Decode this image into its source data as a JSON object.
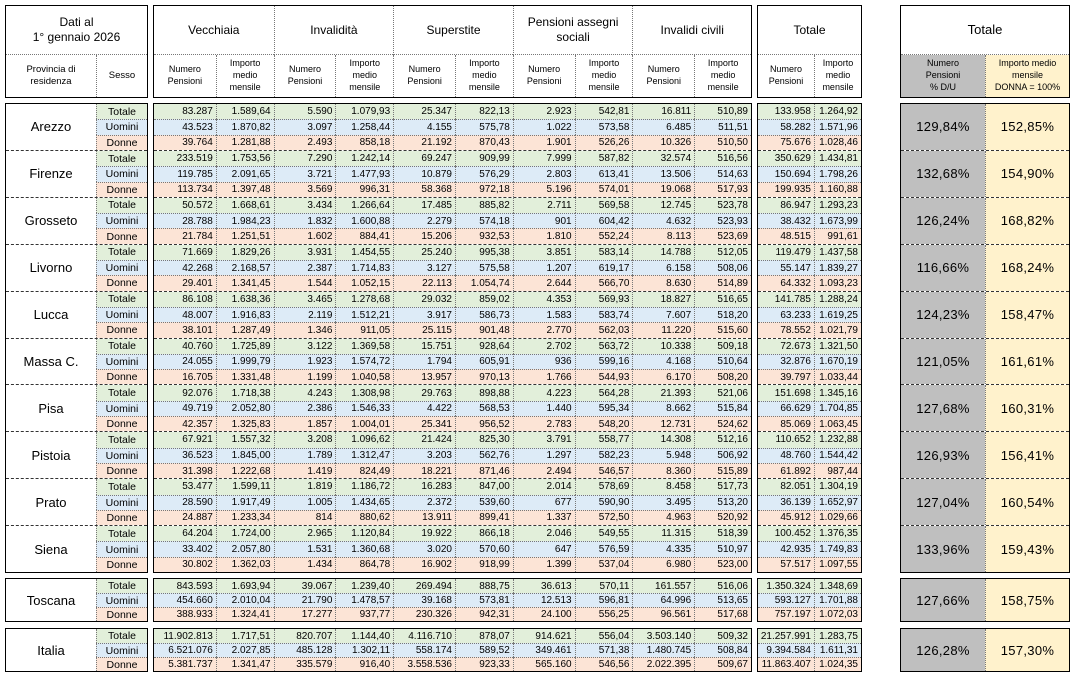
{
  "header": {
    "date_line1": "Dati al",
    "date_line2": "1° gennaio 2026",
    "provincia": "Provincia di residenza",
    "sesso": "Sesso",
    "groups": [
      "Vecchiaia",
      "Invalidità",
      "Superstite",
      "Pensioni assegni sociali",
      "Invalidi civili"
    ],
    "numero": "Numero Pensioni",
    "importo": "Importo medio mensile",
    "totale": "Totale"
  },
  "right_table": {
    "title": "Totale",
    "col_du": [
      "Numero",
      "Pensioni",
      "% D/U"
    ],
    "col_donna": [
      "Importo medio",
      "mensile",
      "DONNA = 100%"
    ]
  },
  "sesso_labels": [
    "Totale",
    "Uomini",
    "Donne"
  ],
  "colors": {
    "row_totale": "#E2EFDA",
    "row_uomini": "#DDEBF7",
    "row_donne": "#FCE4D6",
    "du_gray": "#BFBFBF",
    "donna_yellow": "#FFF2CC",
    "border": "#000000"
  },
  "provinces": [
    {
      "name": "Arezzo",
      "pct_du": "129,84%",
      "pct_donna": "152,85%",
      "rows": [
        {
          "sesso": "Totale",
          "cells": [
            "83.287",
            "1.589,64",
            "5.590",
            "1.079,93",
            "25.347",
            "822,13",
            "2.923",
            "542,81",
            "16.811",
            "510,89",
            "133.958",
            "1.264,92"
          ]
        },
        {
          "sesso": "Uomini",
          "cells": [
            "43.523",
            "1.870,82",
            "3.097",
            "1.258,44",
            "4.155",
            "575,78",
            "1.022",
            "573,58",
            "6.485",
            "511,51",
            "58.282",
            "1.571,96"
          ]
        },
        {
          "sesso": "Donne",
          "cells": [
            "39.764",
            "1.281,88",
            "2.493",
            "858,18",
            "21.192",
            "870,43",
            "1.901",
            "526,26",
            "10.326",
            "510,50",
            "75.676",
            "1.028,46"
          ]
        }
      ]
    },
    {
      "name": "Firenze",
      "pct_du": "132,68%",
      "pct_donna": "154,90%",
      "rows": [
        {
          "sesso": "Totale",
          "cells": [
            "233.519",
            "1.753,56",
            "7.290",
            "1.242,14",
            "69.247",
            "909,99",
            "7.999",
            "587,82",
            "32.574",
            "516,56",
            "350.629",
            "1.434,81"
          ]
        },
        {
          "sesso": "Uomini",
          "cells": [
            "119.785",
            "2.091,65",
            "3.721",
            "1.477,93",
            "10.879",
            "576,29",
            "2.803",
            "613,41",
            "13.506",
            "514,63",
            "150.694",
            "1.798,26"
          ]
        },
        {
          "sesso": "Donne",
          "cells": [
            "113.734",
            "1.397,48",
            "3.569",
            "996,31",
            "58.368",
            "972,18",
            "5.196",
            "574,01",
            "19.068",
            "517,93",
            "199.935",
            "1.160,88"
          ]
        }
      ]
    },
    {
      "name": "Grosseto",
      "pct_du": "126,24%",
      "pct_donna": "168,82%",
      "rows": [
        {
          "sesso": "Totale",
          "cells": [
            "50.572",
            "1.668,61",
            "3.434",
            "1.266,64",
            "17.485",
            "885,82",
            "2.711",
            "569,58",
            "12.745",
            "523,78",
            "86.947",
            "1.293,23"
          ]
        },
        {
          "sesso": "Uomini",
          "cells": [
            "28.788",
            "1.984,23",
            "1.832",
            "1.600,88",
            "2.279",
            "574,18",
            "901",
            "604,42",
            "4.632",
            "523,93",
            "38.432",
            "1.673,99"
          ]
        },
        {
          "sesso": "Donne",
          "cells": [
            "21.784",
            "1.251,51",
            "1.602",
            "884,41",
            "15.206",
            "932,53",
            "1.810",
            "552,24",
            "8.113",
            "523,69",
            "48.515",
            "991,61"
          ]
        }
      ]
    },
    {
      "name": "Livorno",
      "pct_du": "116,66%",
      "pct_donna": "168,24%",
      "rows": [
        {
          "sesso": "Totale",
          "cells": [
            "71.669",
            "1.829,26",
            "3.931",
            "1.454,55",
            "25.240",
            "995,38",
            "3.851",
            "583,14",
            "14.788",
            "512,05",
            "119.479",
            "1.437,58"
          ]
        },
        {
          "sesso": "Uomini",
          "cells": [
            "42.268",
            "2.168,57",
            "2.387",
            "1.714,83",
            "3.127",
            "575,58",
            "1.207",
            "619,17",
            "6.158",
            "508,06",
            "55.147",
            "1.839,27"
          ]
        },
        {
          "sesso": "Donne",
          "cells": [
            "29.401",
            "1.341,45",
            "1.544",
            "1.052,15",
            "22.113",
            "1.054,74",
            "2.644",
            "566,70",
            "8.630",
            "514,89",
            "64.332",
            "1.093,23"
          ]
        }
      ]
    },
    {
      "name": "Lucca",
      "pct_du": "124,23%",
      "pct_donna": "158,47%",
      "rows": [
        {
          "sesso": "Totale",
          "cells": [
            "86.108",
            "1.638,36",
            "3.465",
            "1.278,68",
            "29.032",
            "859,02",
            "4.353",
            "569,93",
            "18.827",
            "516,65",
            "141.785",
            "1.288,24"
          ]
        },
        {
          "sesso": "Uomini",
          "cells": [
            "48.007",
            "1.916,83",
            "2.119",
            "1.512,21",
            "3.917",
            "586,73",
            "1.583",
            "583,74",
            "7.607",
            "518,20",
            "63.233",
            "1.619,25"
          ]
        },
        {
          "sesso": "Donne",
          "cells": [
            "38.101",
            "1.287,49",
            "1.346",
            "911,05",
            "25.115",
            "901,48",
            "2.770",
            "562,03",
            "11.220",
            "515,60",
            "78.552",
            "1.021,79"
          ]
        }
      ]
    },
    {
      "name": "Massa C.",
      "pct_du": "121,05%",
      "pct_donna": "161,61%",
      "rows": [
        {
          "sesso": "Totale",
          "cells": [
            "40.760",
            "1.725,89",
            "3.122",
            "1.369,58",
            "15.751",
            "928,64",
            "2.702",
            "563,72",
            "10.338",
            "509,18",
            "72.673",
            "1.321,50"
          ]
        },
        {
          "sesso": "Uomini",
          "cells": [
            "24.055",
            "1.999,79",
            "1.923",
            "1.574,72",
            "1.794",
            "605,91",
            "936",
            "599,16",
            "4.168",
            "510,64",
            "32.876",
            "1.670,19"
          ]
        },
        {
          "sesso": "Donne",
          "cells": [
            "16.705",
            "1.331,48",
            "1.199",
            "1.040,58",
            "13.957",
            "970,13",
            "1.766",
            "544,93",
            "6.170",
            "508,20",
            "39.797",
            "1.033,44"
          ]
        }
      ]
    },
    {
      "name": "Pisa",
      "pct_du": "127,68%",
      "pct_donna": "160,31%",
      "rows": [
        {
          "sesso": "Totale",
          "cells": [
            "92.076",
            "1.718,38",
            "4.243",
            "1.308,98",
            "29.763",
            "898,88",
            "4.223",
            "564,28",
            "21.393",
            "521,06",
            "151.698",
            "1.345,16"
          ]
        },
        {
          "sesso": "Uomini",
          "cells": [
            "49.719",
            "2.052,80",
            "2.386",
            "1.546,33",
            "4.422",
            "568,53",
            "1.440",
            "595,34",
            "8.662",
            "515,84",
            "66.629",
            "1.704,85"
          ]
        },
        {
          "sesso": "Donne",
          "cells": [
            "42.357",
            "1.325,83",
            "1.857",
            "1.004,01",
            "25.341",
            "956,52",
            "2.783",
            "548,20",
            "12.731",
            "524,62",
            "85.069",
            "1.063,45"
          ]
        }
      ]
    },
    {
      "name": "Pistoia",
      "pct_du": "126,93%",
      "pct_donna": "156,41%",
      "rows": [
        {
          "sesso": "Totale",
          "cells": [
            "67.921",
            "1.557,32",
            "3.208",
            "1.096,62",
            "21.424",
            "825,30",
            "3.791",
            "558,77",
            "14.308",
            "512,16",
            "110.652",
            "1.232,88"
          ]
        },
        {
          "sesso": "Uomini",
          "cells": [
            "36.523",
            "1.845,00",
            "1.789",
            "1.312,47",
            "3.203",
            "562,76",
            "1.297",
            "582,23",
            "5.948",
            "506,92",
            "48.760",
            "1.544,42"
          ]
        },
        {
          "sesso": "Donne",
          "cells": [
            "31.398",
            "1.222,68",
            "1.419",
            "824,49",
            "18.221",
            "871,46",
            "2.494",
            "546,57",
            "8.360",
            "515,89",
            "61.892",
            "987,44"
          ]
        }
      ]
    },
    {
      "name": "Prato",
      "pct_du": "127,04%",
      "pct_donna": "160,54%",
      "rows": [
        {
          "sesso": "Totale",
          "cells": [
            "53.477",
            "1.599,11",
            "1.819",
            "1.186,72",
            "16.283",
            "847,00",
            "2.014",
            "578,69",
            "8.458",
            "517,73",
            "82.051",
            "1.304,19"
          ]
        },
        {
          "sesso": "Uomini",
          "cells": [
            "28.590",
            "1.917,49",
            "1.005",
            "1.434,65",
            "2.372",
            "539,60",
            "677",
            "590,90",
            "3.495",
            "513,20",
            "36.139",
            "1.652,97"
          ]
        },
        {
          "sesso": "Donne",
          "cells": [
            "24.887",
            "1.233,34",
            "814",
            "880,62",
            "13.911",
            "899,41",
            "1.337",
            "572,50",
            "4.963",
            "520,92",
            "45.912",
            "1.029,66"
          ]
        }
      ]
    },
    {
      "name": "Siena",
      "pct_du": "133,96%",
      "pct_donna": "159,43%",
      "rows": [
        {
          "sesso": "Totale",
          "cells": [
            "64.204",
            "1.724,00",
            "2.965",
            "1.120,84",
            "19.922",
            "866,18",
            "2.046",
            "549,55",
            "11.315",
            "518,39",
            "100.452",
            "1.376,35"
          ]
        },
        {
          "sesso": "Uomini",
          "cells": [
            "33.402",
            "2.057,80",
            "1.531",
            "1.360,68",
            "3.020",
            "570,60",
            "647",
            "576,59",
            "4.335",
            "510,97",
            "42.935",
            "1.749,83"
          ]
        },
        {
          "sesso": "Donne",
          "cells": [
            "30.802",
            "1.362,03",
            "1.434",
            "864,78",
            "16.902",
            "918,99",
            "1.399",
            "537,04",
            "6.980",
            "523,00",
            "57.517",
            "1.097,55"
          ]
        }
      ]
    }
  ],
  "toscana": {
    "name": "Toscana",
    "pct_du": "127,66%",
    "pct_donna": "158,75%",
    "rows": [
      {
        "sesso": "Totale",
        "cells": [
          "843.593",
          "1.693,94",
          "39.067",
          "1.239,40",
          "269.494",
          "888,75",
          "36.613",
          "570,11",
          "161.557",
          "516,06",
          "1.350.324",
          "1.348,69"
        ]
      },
      {
        "sesso": "Uomini",
        "cells": [
          "454.660",
          "2.010,04",
          "21.790",
          "1.478,57",
          "39.168",
          "573,81",
          "12.513",
          "596,81",
          "64.996",
          "513,65",
          "593.127",
          "1.701,88"
        ]
      },
      {
        "sesso": "Donne",
        "cells": [
          "388.933",
          "1.324,41",
          "17.277",
          "937,77",
          "230.326",
          "942,31",
          "24.100",
          "556,25",
          "96.561",
          "517,68",
          "757.197",
          "1.072,03"
        ]
      }
    ]
  },
  "italia": {
    "name": "Italia",
    "pct_du": "126,28%",
    "pct_donna": "157,30%",
    "rows": [
      {
        "sesso": "Totale",
        "cells": [
          "11.902.813",
          "1.717,51",
          "820.707",
          "1.144,40",
          "4.116.710",
          "878,07",
          "914.621",
          "556,04",
          "3.503.140",
          "509,32",
          "21.257.991",
          "1.283,75"
        ]
      },
      {
        "sesso": "Uomini",
        "cells": [
          "6.521.076",
          "2.027,85",
          "485.128",
          "1.302,11",
          "558.174",
          "589,52",
          "349.461",
          "571,38",
          "1.480.745",
          "508,84",
          "9.394.584",
          "1.611,31"
        ]
      },
      {
        "sesso": "Donne",
        "cells": [
          "5.381.737",
          "1.341,47",
          "335.579",
          "916,40",
          "3.558.536",
          "923,33",
          "565.160",
          "546,56",
          "2.022.395",
          "509,67",
          "11.863.407",
          "1.024,35"
        ]
      }
    ]
  }
}
